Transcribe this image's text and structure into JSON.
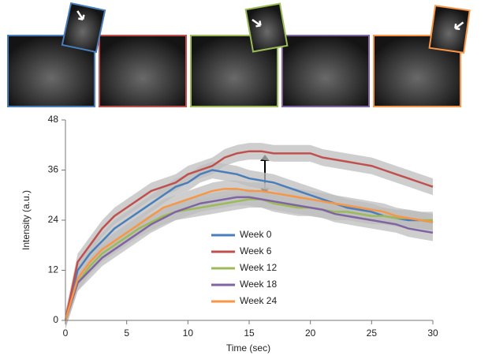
{
  "chart_data": {
    "type": "line",
    "xlabel": "Time (sec)",
    "ylabel": "Intensity (a.u.)",
    "xlim": [
      0,
      30
    ],
    "xticks": [
      0,
      5,
      10,
      15,
      20,
      25,
      30
    ],
    "ylim": [
      0,
      48
    ],
    "yticks": [
      0,
      12,
      24,
      36,
      48
    ],
    "grid": false,
    "legend": "center",
    "x": [
      0,
      1,
      2,
      3,
      4,
      5,
      6,
      7,
      8,
      9,
      10,
      11,
      12,
      13,
      14,
      15,
      16,
      17,
      18,
      19,
      20,
      21,
      22,
      23,
      24,
      25,
      26,
      27,
      28,
      29,
      30
    ],
    "series": [
      {
        "name": "Week 0",
        "color": "#4a7ebb",
        "error": 2,
        "values": [
          0,
          12,
          16,
          19,
          22,
          24,
          26,
          28,
          30,
          32,
          33,
          35,
          36,
          35.5,
          35,
          34,
          33.5,
          33,
          32,
          31,
          30,
          29,
          28,
          27,
          26.5,
          26,
          25,
          24.5,
          24,
          24,
          23.5
        ]
      },
      {
        "name": "Week 6",
        "color": "#c0504d",
        "error": 2,
        "values": [
          0,
          14,
          18,
          22,
          25,
          27,
          29,
          31,
          32,
          33,
          35,
          36,
          37,
          39,
          40,
          40.5,
          40.5,
          40,
          40,
          40,
          40,
          39,
          38.5,
          38,
          37.5,
          37,
          36,
          35,
          34,
          33,
          32
        ]
      },
      {
        "name": "Week 12",
        "color": "#9bbb59",
        "error": 2,
        "values": [
          0,
          9,
          13,
          16,
          18,
          20,
          22,
          23.5,
          25,
          26,
          26.5,
          27,
          27.5,
          28,
          28.5,
          29,
          29,
          28,
          27.5,
          27,
          27,
          26.5,
          26,
          26,
          25.5,
          25,
          25,
          24.5,
          24.5,
          24,
          24
        ]
      },
      {
        "name": "Week 18",
        "color": "#8064a2",
        "error": 2,
        "values": [
          0,
          9,
          12,
          15,
          17,
          19,
          21,
          23,
          24.5,
          26,
          27,
          28,
          28.5,
          29,
          29.5,
          29.5,
          29,
          28.5,
          28,
          27.5,
          27,
          26.5,
          25.5,
          25,
          24.5,
          24,
          23.5,
          23,
          22,
          21.5,
          21
        ]
      },
      {
        "name": "Week 24",
        "color": "#f79646",
        "error": 2,
        "values": [
          0,
          10,
          14,
          17,
          19,
          21,
          23,
          25,
          27,
          28,
          29,
          30,
          31,
          31.5,
          31.5,
          31,
          31,
          30.5,
          30,
          29.5,
          29,
          28.5,
          28,
          27.5,
          27,
          26.5,
          26,
          25,
          24.5,
          24,
          23.5
        ]
      }
    ]
  }
}
